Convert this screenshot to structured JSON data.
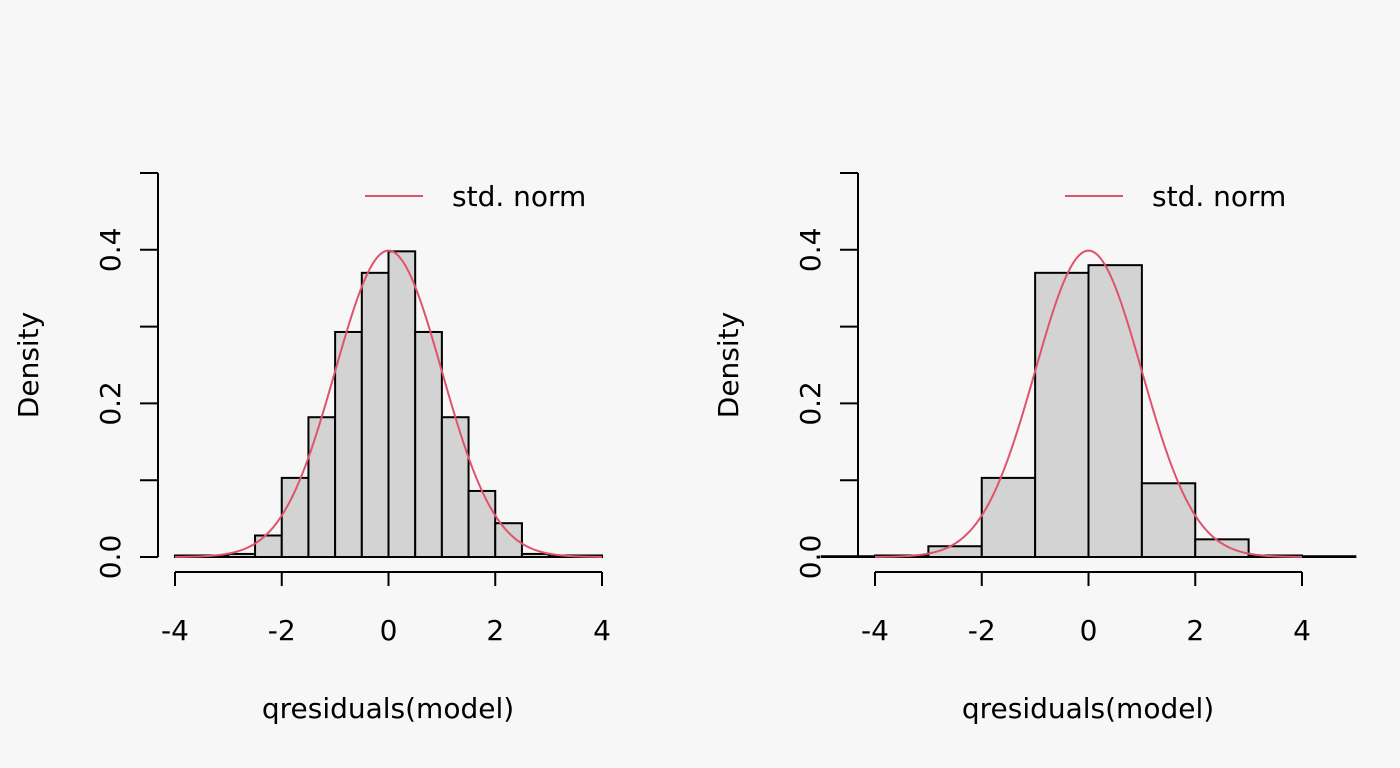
{
  "colors": {
    "background": "#f7f7f7",
    "bar_fill": "#d3d3d3",
    "bar_stroke": "#000000",
    "curve": "#df536b",
    "axis": "#000000"
  },
  "chart_data": [
    {
      "type": "bar",
      "xlabel": "qresiduals(model)",
      "ylabel": "Density",
      "xlim": [
        -4.3,
        4.3
      ],
      "ylim": [
        0,
        0.5
      ],
      "x_ticks": [
        -4,
        -2,
        0,
        2,
        4
      ],
      "x_tick_labels": [
        "-4",
        "-2",
        "0",
        "2",
        "4"
      ],
      "y_ticks": [
        0,
        0.1,
        0.2,
        0.3,
        0.4,
        0.5
      ],
      "y_tick_labels": [
        "0.0",
        "",
        "0.2",
        "",
        "0.4",
        ""
      ],
      "bin_edges": [
        -4,
        -3.5,
        -3,
        -2.5,
        -2,
        -1.5,
        -1,
        -0.5,
        0,
        0.5,
        1,
        1.5,
        2,
        2.5,
        3,
        3.5,
        4
      ],
      "densities": [
        0.002,
        0.002,
        0.004,
        0.028,
        0.103,
        0.182,
        0.293,
        0.37,
        0.398,
        0.293,
        0.182,
        0.086,
        0.044,
        0.004,
        0.002,
        0.002
      ],
      "curve": {
        "type": "normal",
        "mean": 0,
        "sd": 1,
        "name": "std. norm"
      },
      "legend": {
        "position": "top-right",
        "entries": [
          "std. norm"
        ]
      },
      "grid": false
    },
    {
      "type": "bar",
      "xlabel": "qresiduals(model)",
      "ylabel": "Density",
      "xlim": [
        -4.3,
        4.3
      ],
      "ylim": [
        0,
        0.5
      ],
      "x_ticks": [
        -4,
        -2,
        0,
        2,
        4
      ],
      "x_tick_labels": [
        "-4",
        "-2",
        "0",
        "2",
        "4"
      ],
      "y_ticks": [
        0,
        0.1,
        0.2,
        0.3,
        0.4,
        0.5
      ],
      "y_tick_labels": [
        "0.0",
        "",
        "0.2",
        "",
        "0.4",
        ""
      ],
      "bin_edges": [
        -5,
        -4,
        -3,
        -2,
        -1,
        0,
        1,
        2,
        3,
        4,
        5
      ],
      "densities": [
        0.001,
        0.002,
        0.014,
        0.103,
        0.37,
        0.38,
        0.096,
        0.023,
        0.002,
        0.001
      ],
      "curve": {
        "type": "normal",
        "mean": 0,
        "sd": 1,
        "name": "std. norm"
      },
      "legend": {
        "position": "top-right",
        "entries": [
          "std. norm"
        ]
      },
      "grid": false
    }
  ]
}
